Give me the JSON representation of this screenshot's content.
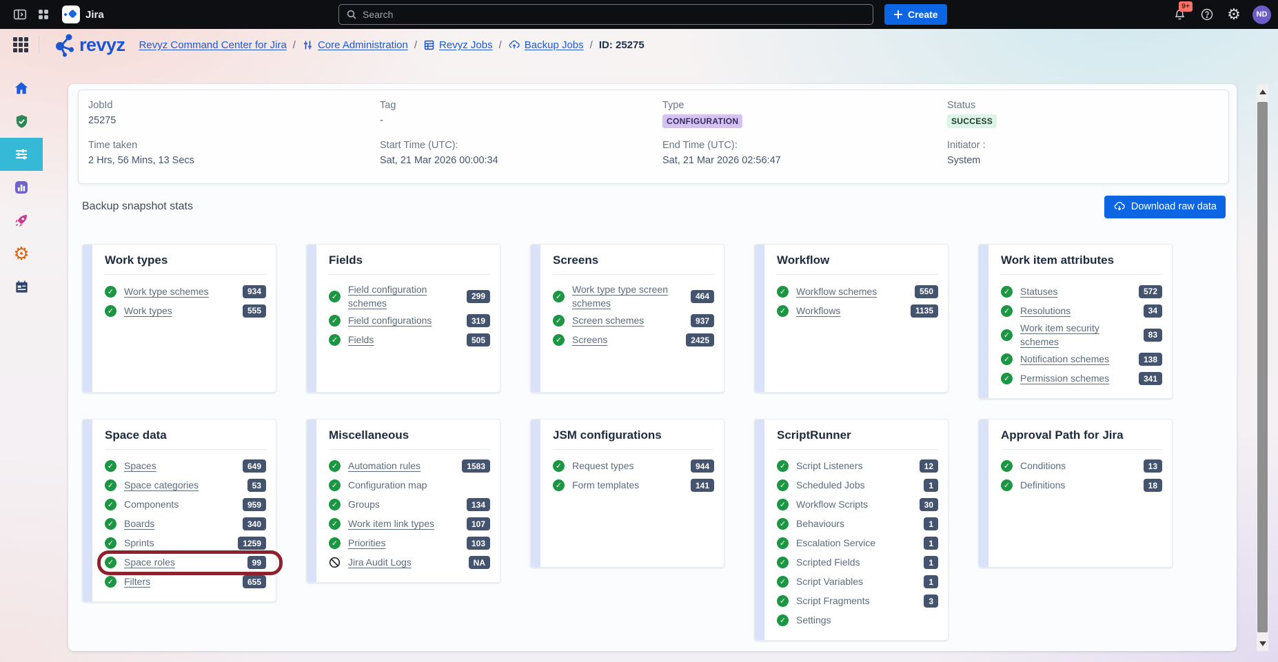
{
  "topbar": {
    "app_name": "Jira",
    "search_placeholder": "Search",
    "create_label": "Create",
    "notification_badge": "9+",
    "avatar_initials": "ND"
  },
  "breadcrumb": {
    "logo_text": "revyz",
    "separator": "/",
    "items": {
      "command_center": "Revyz Command Center for Jira",
      "core_admin": "Core Administration",
      "revyz_jobs": "Revyz Jobs",
      "backup_jobs": "Backup Jobs",
      "current": "ID: 25275"
    }
  },
  "sidebar": {
    "items": [
      {
        "name": "home-icon",
        "active": false
      },
      {
        "name": "shield-check-icon",
        "active": false
      },
      {
        "name": "sliders-icon",
        "active": true
      },
      {
        "name": "bar-chart-icon",
        "active": false
      },
      {
        "name": "rocket-icon",
        "active": false
      },
      {
        "name": "gear-icon",
        "active": false
      },
      {
        "name": "calendar-icon",
        "active": false
      }
    ]
  },
  "job_info": {
    "fields": [
      {
        "label": "JobId",
        "value": "25275",
        "type": "text"
      },
      {
        "label": "Tag",
        "value": "-",
        "type": "text"
      },
      {
        "label": "Type",
        "value": "CONFIGURATION",
        "type": "lozenge-purple"
      },
      {
        "label": "Status",
        "value": "SUCCESS",
        "type": "lozenge-green"
      },
      {
        "label": "Time taken",
        "value": "2 Hrs, 56 Mins, 13 Secs",
        "type": "text"
      },
      {
        "label": "Start Time (UTC):",
        "value": "Sat, 21 Mar 2026 00:00:34",
        "type": "text"
      },
      {
        "label": "End Time (UTC):",
        "value": "Sat, 21 Mar 2026 02:56:47",
        "type": "text"
      },
      {
        "label": "Initiator :",
        "value": "System",
        "type": "text"
      }
    ]
  },
  "stats_section": {
    "title": "Backup snapshot stats",
    "download_button_label": "Download raw data"
  },
  "cards": [
    {
      "title": "Work types",
      "items": [
        {
          "label": "Work type schemes",
          "count": "934",
          "link": true,
          "status": "ok"
        },
        {
          "label": "Work types",
          "count": "555",
          "link": true,
          "status": "ok"
        }
      ]
    },
    {
      "title": "Fields",
      "items": [
        {
          "label": "Field configuration schemes",
          "count": "299",
          "link": true,
          "status": "ok"
        },
        {
          "label": "Field configurations",
          "count": "319",
          "link": true,
          "status": "ok"
        },
        {
          "label": "Fields",
          "count": "505",
          "link": true,
          "status": "ok"
        }
      ]
    },
    {
      "title": "Screens",
      "items": [
        {
          "label": "Work type type screen schemes",
          "count": "464",
          "link": true,
          "status": "ok"
        },
        {
          "label": "Screen schemes",
          "count": "937",
          "link": true,
          "status": "ok"
        },
        {
          "label": "Screens",
          "count": "2425",
          "link": true,
          "status": "ok"
        }
      ]
    },
    {
      "title": "Workflow",
      "items": [
        {
          "label": "Workflow schemes",
          "count": "550",
          "link": true,
          "status": "ok"
        },
        {
          "label": "Workflows",
          "count": "1135",
          "link": true,
          "status": "ok"
        }
      ]
    },
    {
      "title": "Work item attributes",
      "items": [
        {
          "label": "Statuses",
          "count": "572",
          "link": true,
          "status": "ok"
        },
        {
          "label": "Resolutions",
          "count": "34",
          "link": true,
          "status": "ok"
        },
        {
          "label": "Work item security schemes",
          "count": "83",
          "link": true,
          "status": "ok"
        },
        {
          "label": "Notification schemes",
          "count": "138",
          "link": true,
          "status": "ok"
        },
        {
          "label": "Permission schemes",
          "count": "341",
          "link": true,
          "status": "ok"
        }
      ]
    },
    {
      "title": "Space data",
      "items": [
        {
          "label": "Spaces",
          "count": "649",
          "link": true,
          "status": "ok"
        },
        {
          "label": "Space categories",
          "count": "53",
          "link": true,
          "status": "ok"
        },
        {
          "label": "Components",
          "count": "959",
          "link": false,
          "status": "ok"
        },
        {
          "label": "Boards",
          "count": "340",
          "link": true,
          "status": "ok"
        },
        {
          "label": "Sprints",
          "count": "1259",
          "link": false,
          "status": "ok"
        },
        {
          "label": "Space roles",
          "count": "99",
          "link": true,
          "status": "ok",
          "highlighted": true
        },
        {
          "label": "Filters",
          "count": "655",
          "link": true,
          "status": "ok"
        }
      ]
    },
    {
      "title": "Miscellaneous",
      "items": [
        {
          "label": "Automation rules",
          "count": "1583",
          "link": true,
          "status": "ok"
        },
        {
          "label": "Configuration map",
          "count": "",
          "link": false,
          "status": "ok"
        },
        {
          "label": "Groups",
          "count": "134",
          "link": false,
          "status": "ok"
        },
        {
          "label": "Work item link types",
          "count": "107",
          "link": true,
          "status": "ok"
        },
        {
          "label": "Priorities",
          "count": "103",
          "link": true,
          "status": "ok"
        },
        {
          "label": "Jira Audit Logs",
          "count": "NA",
          "link": true,
          "status": "blocked"
        }
      ]
    },
    {
      "title": "JSM configurations",
      "items": [
        {
          "label": "Request types",
          "count": "944",
          "link": false,
          "status": "ok"
        },
        {
          "label": "Form templates",
          "count": "141",
          "link": false,
          "status": "ok"
        }
      ]
    },
    {
      "title": "ScriptRunner",
      "items": [
        {
          "label": "Script Listeners",
          "count": "12",
          "link": false,
          "status": "ok"
        },
        {
          "label": "Scheduled Jobs",
          "count": "1",
          "link": false,
          "status": "ok"
        },
        {
          "label": "Workflow Scripts",
          "count": "30",
          "link": false,
          "status": "ok"
        },
        {
          "label": "Behaviours",
          "count": "1",
          "link": false,
          "status": "ok"
        },
        {
          "label": "Escalation Service",
          "count": "1",
          "link": false,
          "status": "ok"
        },
        {
          "label": "Scripted Fields",
          "count": "1",
          "link": false,
          "status": "ok"
        },
        {
          "label": "Script Variables",
          "count": "1",
          "link": false,
          "status": "ok"
        },
        {
          "label": "Script Fragments",
          "count": "3",
          "link": false,
          "status": "ok"
        },
        {
          "label": "Settings",
          "count": "",
          "link": false,
          "status": "ok"
        }
      ]
    },
    {
      "title": "Approval Path for Jira",
      "items": [
        {
          "label": "Conditions",
          "count": "13",
          "link": false,
          "status": "ok"
        },
        {
          "label": "Definitions",
          "count": "18",
          "link": false,
          "status": "ok"
        }
      ]
    }
  ],
  "colors": {
    "accent_blue": "#0C66E4",
    "count_badge_bg": "#44546F",
    "check_green": "#1C9642",
    "type_lozenge_bg": "#D5C2F1",
    "status_lozenge_bg": "#DCF3E5",
    "highlight_ring": "#8E222C",
    "sidebar_active_bg": "#35B9D7",
    "notification_badge_bg": "#F87168",
    "avatar_bg": "#6E5DC6"
  }
}
